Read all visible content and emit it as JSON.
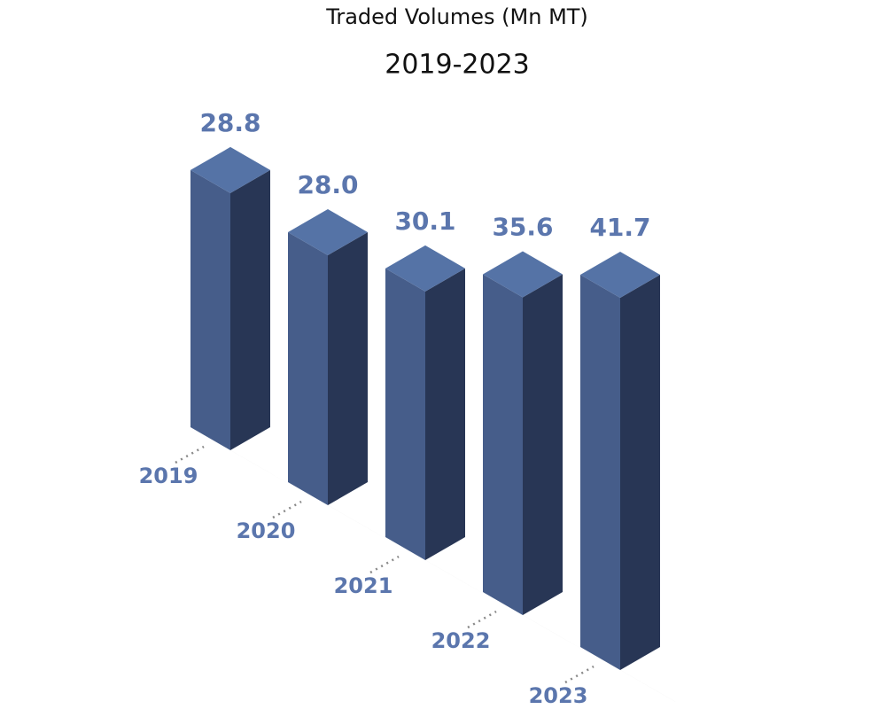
{
  "chart_data": {
    "type": "bar3d",
    "title": "Traded Volumes (Mn MT)",
    "subtitle": "2019-2023",
    "categories": [
      "2019",
      "2020",
      "2021",
      "2022",
      "2023"
    ],
    "values": [
      28.8,
      28.0,
      30.1,
      35.6,
      41.7
    ],
    "value_labels": [
      "28.8",
      "28.0",
      "30.1",
      "35.6",
      "41.7"
    ],
    "colors": {
      "left": "#465d8a",
      "right": "#283655",
      "top": "#5573a6"
    }
  }
}
